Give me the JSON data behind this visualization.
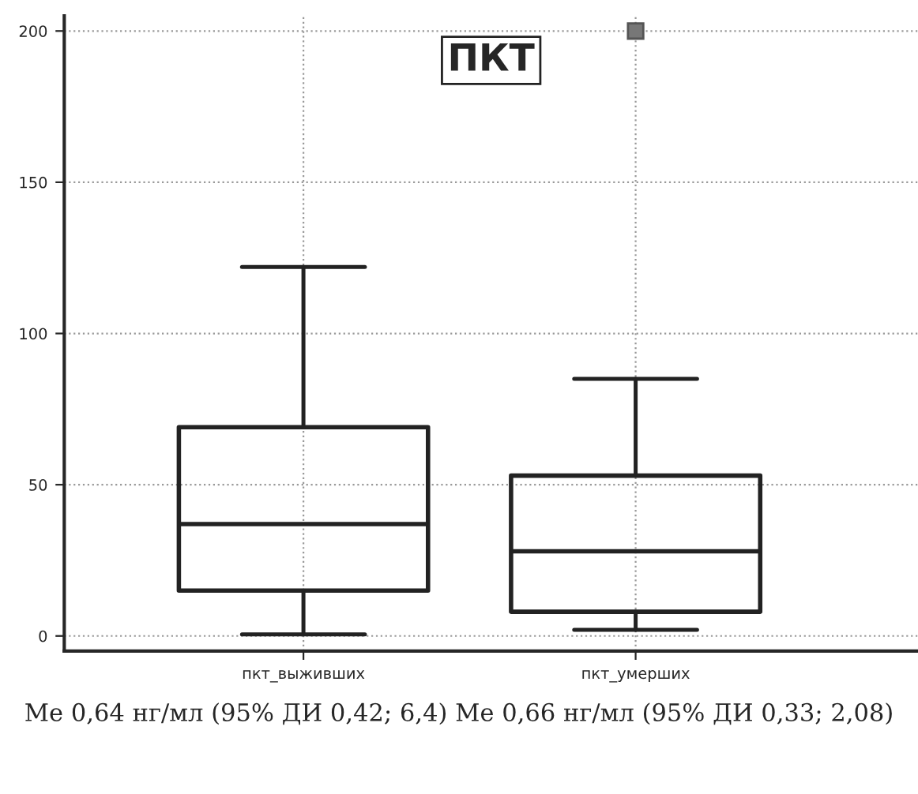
{
  "chart_data": {
    "type": "box",
    "title": "ПКТ",
    "categories": [
      "пкт_выживших",
      "пкт_умерших"
    ],
    "boxes": [
      {
        "low": 0.5,
        "q1": 15,
        "median": 37,
        "q3": 69,
        "high": 122
      },
      {
        "low": 2,
        "q1": 8,
        "median": 28,
        "q3": 53,
        "high": 85,
        "outliers": [
          200
        ]
      }
    ],
    "ylim": [
      -5,
      205
    ],
    "yticks": [
      0,
      50,
      100,
      150,
      200
    ],
    "grid": true,
    "annotations": [
      "Me 0,64 нг/мл (95% ДИ 0,42; 6,4) Me 0,66 нг/мл (95% ДИ 0,33; 2,08)"
    ]
  }
}
